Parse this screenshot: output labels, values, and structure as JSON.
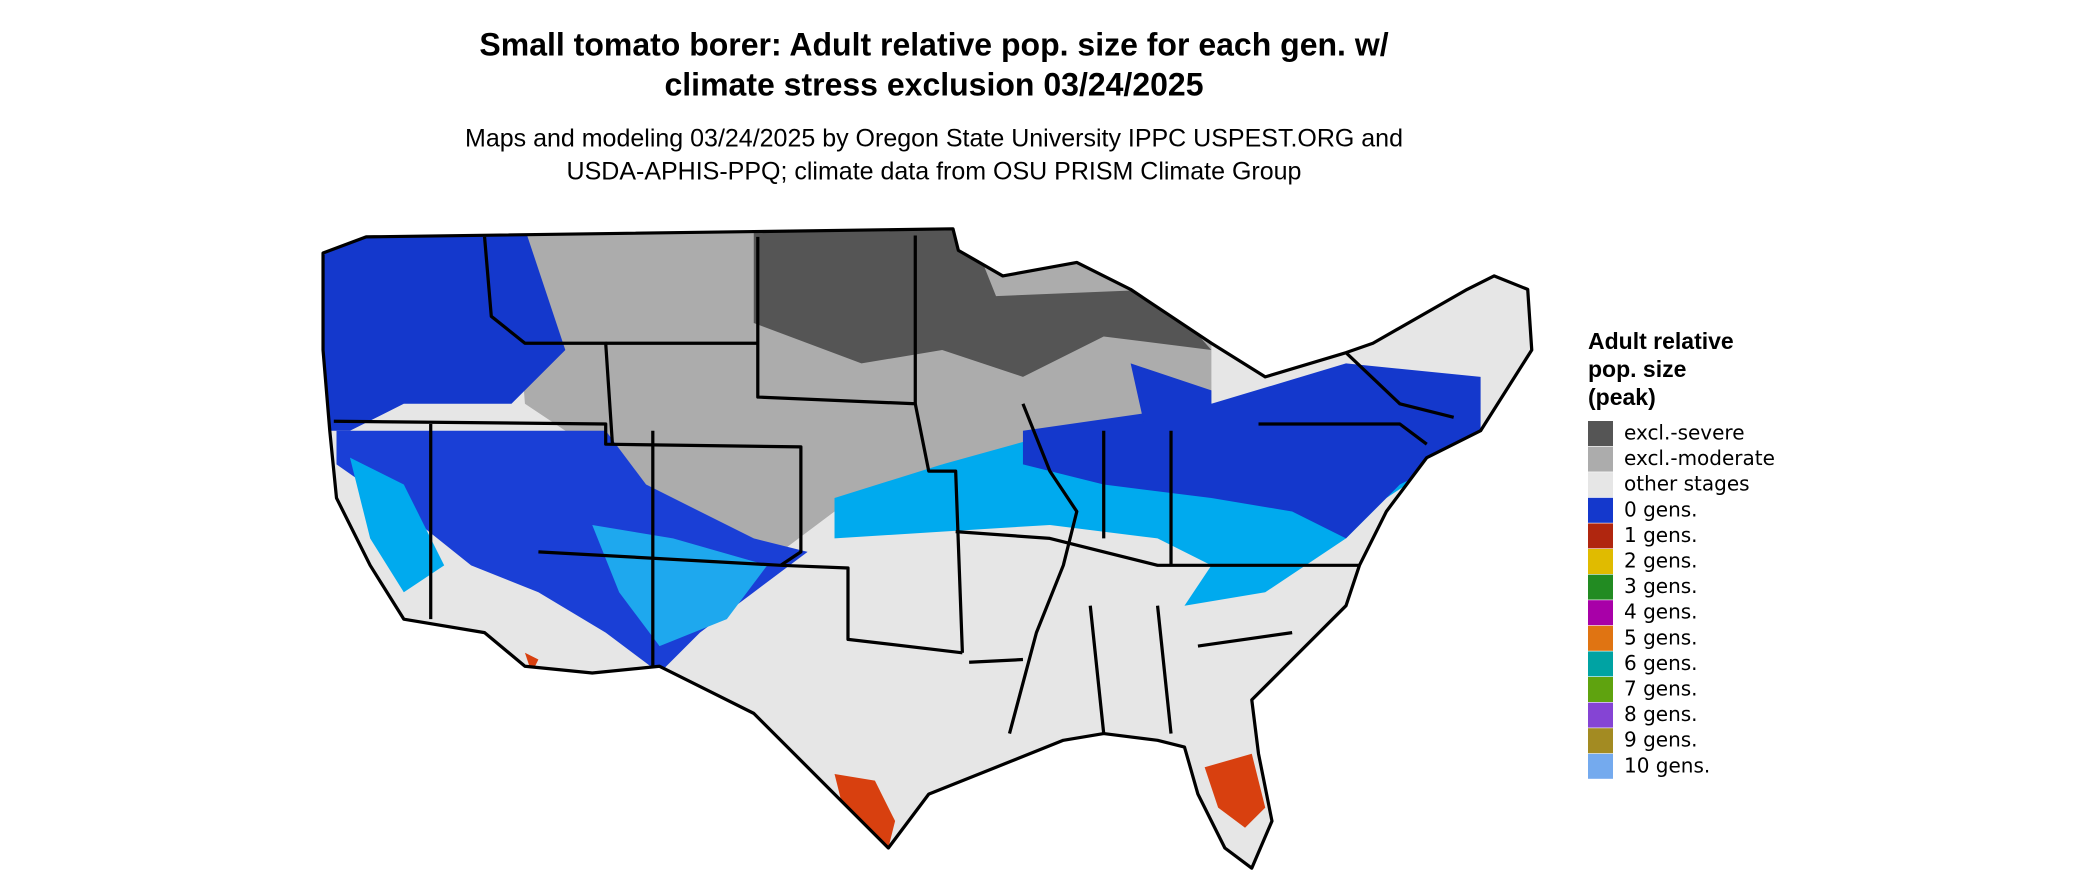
{
  "header": {
    "title_lines": [
      "Small tomato borer: Adult relative pop. size for each gen. w/",
      "climate stress exclusion 03/24/2025"
    ],
    "subtitle_lines": [
      "Maps and modeling 03/24/2025 by Oregon State University IPPC USPEST.ORG and",
      "USDA-APHIS-PPQ; climate data from OSU PRISM Climate Group"
    ]
  },
  "legend": {
    "title_lines": [
      "Adult relative",
      "pop. size",
      "(peak)"
    ],
    "items": [
      {
        "label": "excl.-severe",
        "color": "#555555"
      },
      {
        "label": "excl.-moderate",
        "color": "#acacac"
      },
      {
        "label": "other stages",
        "color": "#e6e6e6"
      },
      {
        "label": "0 gens.",
        "color": "#1438cc"
      },
      {
        "label": "1 gens.",
        "color": "#b0260f"
      },
      {
        "label": "2 gens.",
        "color": "#e0bb00"
      },
      {
        "label": "3 gens.",
        "color": "#228b22"
      },
      {
        "label": "4 gens.",
        "color": "#a800a8"
      },
      {
        "label": "5 gens.",
        "color": "#e07412"
      },
      {
        "label": "6 gens.",
        "color": "#00a3a3"
      },
      {
        "label": "7 gens.",
        "color": "#5fa30f"
      },
      {
        "label": "8 gens.",
        "color": "#8544d4"
      },
      {
        "label": "9 gens.",
        "color": "#a38b22"
      },
      {
        "label": "10 gens.",
        "color": "#74aaee"
      }
    ]
  }
}
